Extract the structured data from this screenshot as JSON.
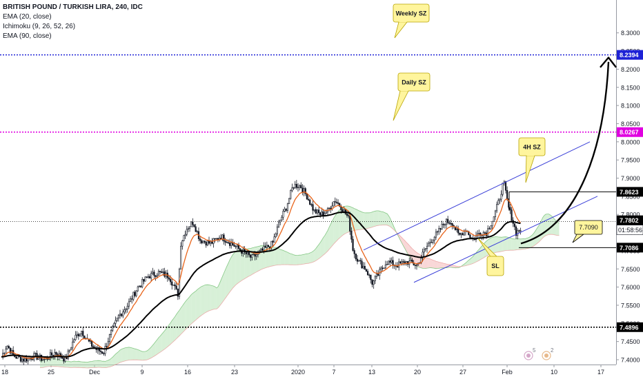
{
  "header": {
    "title": "BRITISH POUND / TURKISH LIRA, 240, IDC",
    "indicators": [
      "EMA (20, close)",
      "Ichimoku (9, 26, 52, 26)",
      "EMA (90, close)"
    ]
  },
  "chart_data": {
    "type": "line",
    "ylim": [
      7.39,
      8.34
    ],
    "x_tick_labels": [
      "18",
      "25",
      "Dec",
      "9",
      "16",
      "23",
      "2020",
      "7",
      "13",
      "20",
      "27",
      "Feb",
      "10",
      "17"
    ],
    "y_ticks": [
      7.4,
      7.45,
      7.5,
      7.55,
      7.6,
      7.65,
      7.7,
      7.75,
      7.8,
      7.85,
      7.9,
      7.95,
      8.0,
      8.05,
      8.1,
      8.15,
      8.2,
      8.25,
      8.3
    ],
    "y_tick_labels": [
      "7.4000",
      "7.4500",
      "7.5000",
      "7.5500",
      "7.6000",
      "7.6500",
      "7.7000",
      "7.7500",
      "7.8000",
      "7.8500",
      "7.9000",
      "7.9500",
      "8.0000",
      "8.0500",
      "8.1000",
      "8.1500",
      "8.2000",
      "8.2500",
      "8.3000"
    ],
    "levels": [
      {
        "name": "Weekly SZ level",
        "value": 8.2394,
        "label": "8.2394",
        "color": "#1e22d6"
      },
      {
        "name": "Daily SZ level",
        "value": 8.0267,
        "label": "8.0267",
        "color": "#e000e0"
      },
      {
        "name": "support level",
        "value": 7.4896,
        "label": "7.4896",
        "color": "#000000"
      },
      {
        "name": "current price",
        "value": 7.7802,
        "label": "7.7802",
        "color": "#000000"
      },
      {
        "name": "4H SZ level",
        "value": 7.8623,
        "label": "7.8623",
        "color": "#000000"
      },
      {
        "name": "stop level",
        "value": 7.7086,
        "label": "7.7086",
        "color": "#000000"
      }
    ],
    "countdown_label": "01:58:56",
    "annotations": [
      {
        "name": "weekly-sz",
        "text": "Weekly SZ"
      },
      {
        "name": "daily-sz",
        "text": "Daily SZ"
      },
      {
        "name": "4h-sz",
        "text": "4H SZ"
      },
      {
        "name": "sl",
        "text": "SL"
      },
      {
        "name": "entry",
        "text": "7.7090"
      }
    ],
    "close_path": [
      [
        0,
        7.4
      ],
      [
        10,
        7.44
      ],
      [
        20,
        7.41
      ],
      [
        35,
        7.4
      ],
      [
        50,
        7.41
      ],
      [
        65,
        7.4
      ],
      [
        80,
        7.42
      ],
      [
        95,
        7.4
      ],
      [
        108,
        7.46
      ],
      [
        118,
        7.48
      ],
      [
        128,
        7.45
      ],
      [
        138,
        7.43
      ],
      [
        150,
        7.42
      ],
      [
        160,
        7.47
      ],
      [
        172,
        7.52
      ],
      [
        185,
        7.55
      ],
      [
        200,
        7.6
      ],
      [
        215,
        7.63
      ],
      [
        230,
        7.64
      ],
      [
        245,
        7.63
      ],
      [
        258,
        7.58
      ],
      [
        262,
        7.72
      ],
      [
        270,
        7.76
      ],
      [
        280,
        7.78
      ],
      [
        290,
        7.73
      ],
      [
        305,
        7.72
      ],
      [
        320,
        7.74
      ],
      [
        335,
        7.72
      ],
      [
        350,
        7.7
      ],
      [
        365,
        7.68
      ],
      [
        380,
        7.7
      ],
      [
        395,
        7.72
      ],
      [
        405,
        7.78
      ],
      [
        415,
        7.82
      ],
      [
        425,
        7.88
      ],
      [
        435,
        7.88
      ],
      [
        445,
        7.85
      ],
      [
        455,
        7.81
      ],
      [
        465,
        7.8
      ],
      [
        475,
        7.81
      ],
      [
        485,
        7.84
      ],
      [
        495,
        7.82
      ],
      [
        505,
        7.79
      ],
      [
        512,
        7.7
      ],
      [
        520,
        7.67
      ],
      [
        530,
        7.65
      ],
      [
        540,
        7.61
      ],
      [
        550,
        7.64
      ],
      [
        560,
        7.67
      ],
      [
        575,
        7.66
      ],
      [
        590,
        7.67
      ],
      [
        605,
        7.66
      ],
      [
        615,
        7.7
      ],
      [
        625,
        7.73
      ],
      [
        635,
        7.75
      ],
      [
        645,
        7.78
      ],
      [
        655,
        7.78
      ],
      [
        665,
        7.74
      ],
      [
        675,
        7.76
      ],
      [
        685,
        7.73
      ],
      [
        695,
        7.75
      ],
      [
        705,
        7.75
      ],
      [
        715,
        7.79
      ],
      [
        722,
        7.83
      ],
      [
        730,
        7.89
      ],
      [
        737,
        7.82
      ],
      [
        742,
        7.79
      ],
      [
        748,
        7.75
      ],
      [
        755,
        7.76
      ]
    ],
    "series": [
      {
        "role": "price",
        "color": "#131722",
        "source": "close_path"
      },
      {
        "role": "EMA 20",
        "color": "#e8641a",
        "smooth": 0.18
      },
      {
        "role": "EMA 90",
        "color": "#000000",
        "smooth": 0.04
      }
    ],
    "cloud": {
      "upper_color": "#b7e4b7",
      "lower_color": "#f4b6b6",
      "span_a_color": "#5ab45a",
      "span_b_color": "#e88d8d"
    },
    "channels": [
      {
        "color": "#3a3fd8",
        "lines": [
          [
            [
              527,
              7.702
            ],
            [
              855,
              8.0
            ]
          ],
          [
            [
              600,
              7.613
            ],
            [
              866,
              7.85
            ]
          ]
        ]
      }
    ],
    "events": [
      {
        "name": "earnings-5",
        "text": "5"
      },
      {
        "name": "dividend-2",
        "text": "2"
      }
    ]
  }
}
